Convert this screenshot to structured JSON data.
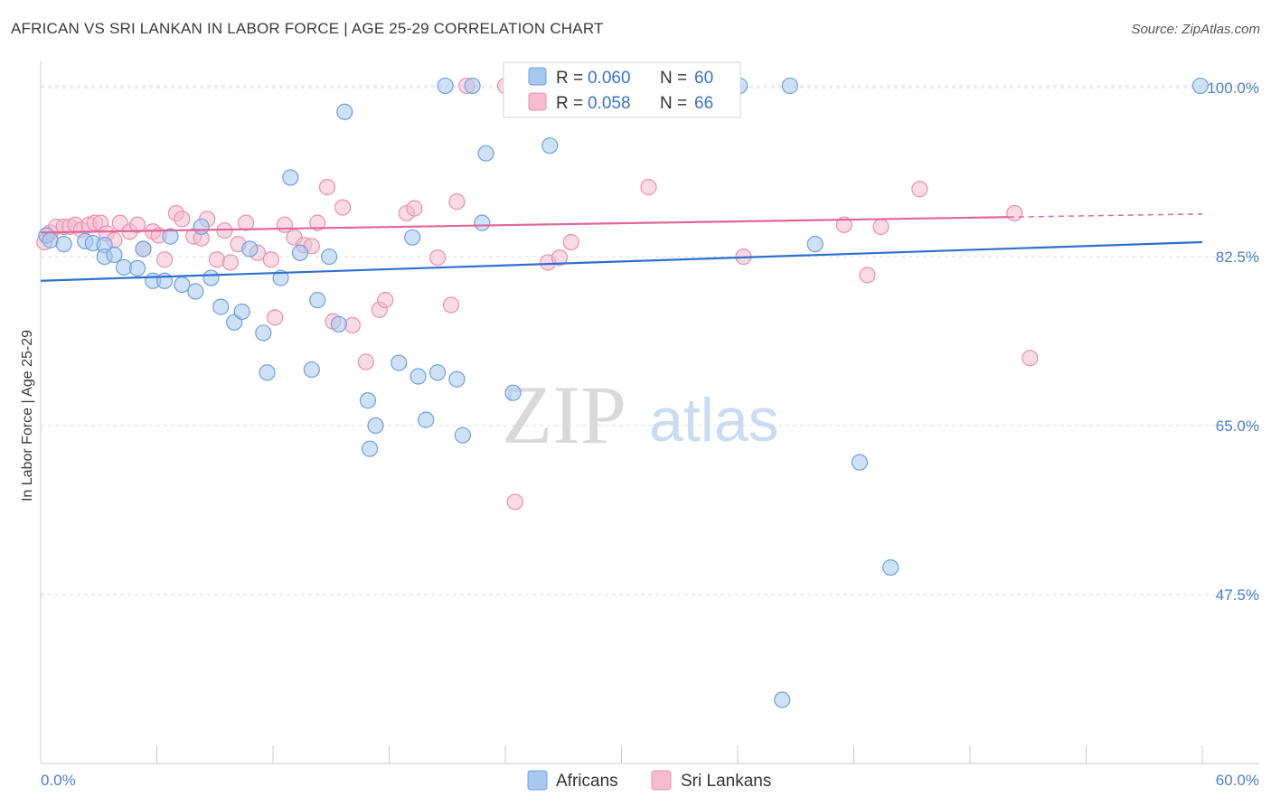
{
  "header": {
    "title": "AFRICAN VS SRI LANKAN IN LABOR FORCE | AGE 25-29 CORRELATION CHART",
    "source": "Source: ZipAtlas.com"
  },
  "watermark": {
    "zip": "ZIP",
    "atlas": "atlas"
  },
  "colors": {
    "blue_fill": "#a8c8f0",
    "blue_stroke": "#6fa0e0",
    "blue_line": "#2e6fcf",
    "pink_fill": "#f5bcd0",
    "pink_stroke": "#ec8fb0",
    "pink_line": "#e0679a",
    "grid": "#dddddd",
    "tick_text": "#4a7fd0"
  },
  "legend": {
    "rows": [
      {
        "r_label": "R = ",
        "r_value": "0.060",
        "n_label": "N = ",
        "n_value": "60",
        "color": "blue"
      },
      {
        "r_label": "R = ",
        "r_value": "0.058",
        "n_label": "N = ",
        "n_value": "66",
        "color": "pink"
      }
    ]
  },
  "chart_data": {
    "type": "scatter",
    "title": "AFRICAN VS SRI LANKAN IN LABOR FORCE | AGE 25-29 CORRELATION CHART",
    "xlabel": "",
    "ylabel": "In Labor Force | Age 25-29",
    "xlim": [
      0,
      60
    ],
    "ylim": [
      30,
      103
    ],
    "x_tick_labels": [
      "0.0%",
      "60.0%"
    ],
    "y_ticks": [
      47.5,
      65.0,
      82.5,
      100.0
    ],
    "y_tick_labels": [
      "47.5%",
      "65.0%",
      "82.5%",
      "100.0%"
    ],
    "grid": true,
    "legend_position": "top-center",
    "series": [
      {
        "name": "Africans",
        "color": "blue",
        "trend": {
          "x0": 0,
          "y0": 80.0,
          "x1": 60,
          "y1": 84.0
        },
        "points": [
          [
            0.3,
            84.7
          ],
          [
            0.5,
            84.2
          ],
          [
            1.2,
            83.8
          ],
          [
            2.3,
            84.1
          ],
          [
            2.7,
            83.9
          ],
          [
            3.3,
            83.7
          ],
          [
            3.3,
            82.5
          ],
          [
            3.8,
            82.7
          ],
          [
            4.3,
            81.4
          ],
          [
            5.0,
            81.3
          ],
          [
            5.3,
            83.3
          ],
          [
            5.8,
            80.0
          ],
          [
            6.4,
            80.0
          ],
          [
            6.7,
            84.6
          ],
          [
            7.3,
            79.6
          ],
          [
            8.0,
            78.9
          ],
          [
            8.3,
            85.6
          ],
          [
            8.8,
            80.3
          ],
          [
            9.3,
            77.3
          ],
          [
            10.0,
            75.7
          ],
          [
            10.4,
            76.8
          ],
          [
            10.8,
            83.3
          ],
          [
            11.5,
            74.6
          ],
          [
            11.7,
            70.5
          ],
          [
            12.4,
            80.3
          ],
          [
            12.9,
            90.7
          ],
          [
            13.4,
            82.9
          ],
          [
            14.0,
            70.8
          ],
          [
            14.3,
            78.0
          ],
          [
            14.9,
            82.5
          ],
          [
            15.4,
            75.5
          ],
          [
            15.7,
            97.5
          ],
          [
            16.9,
            67.6
          ],
          [
            17.0,
            62.6
          ],
          [
            17.3,
            65.0
          ],
          [
            18.5,
            71.5
          ],
          [
            19.2,
            84.5
          ],
          [
            19.5,
            70.1
          ],
          [
            19.9,
            65.6
          ],
          [
            20.5,
            70.5
          ],
          [
            20.9,
            100.2
          ],
          [
            21.5,
            69.8
          ],
          [
            21.8,
            64.0
          ],
          [
            22.3,
            100.2
          ],
          [
            22.8,
            86.0
          ],
          [
            23.0,
            93.2
          ],
          [
            24.4,
            68.4
          ],
          [
            26.3,
            94.0
          ],
          [
            28.0,
            100.2
          ],
          [
            30.2,
            100.2
          ],
          [
            32.2,
            100.2
          ],
          [
            33.8,
            100.2
          ],
          [
            34.7,
            100.2
          ],
          [
            36.1,
            100.2
          ],
          [
            38.3,
            36.6
          ],
          [
            38.7,
            100.2
          ],
          [
            40.0,
            83.8
          ],
          [
            42.3,
            61.2
          ],
          [
            43.9,
            50.3
          ],
          [
            59.9,
            100.2
          ]
        ]
      },
      {
        "name": "Sri Lankans",
        "color": "pink",
        "trend": {
          "x0": 0,
          "y0": 85.0,
          "x1": 50,
          "y1": 86.6
        },
        "points": [
          [
            0.2,
            84.0
          ],
          [
            0.5,
            85.0
          ],
          [
            0.8,
            85.6
          ],
          [
            1.2,
            85.6
          ],
          [
            1.5,
            85.6
          ],
          [
            1.8,
            85.8
          ],
          [
            2.1,
            85.3
          ],
          [
            2.5,
            85.8
          ],
          [
            2.8,
            86.0
          ],
          [
            3.1,
            86.0
          ],
          [
            3.4,
            84.9
          ],
          [
            3.8,
            84.2
          ],
          [
            4.1,
            86.0
          ],
          [
            4.6,
            85.1
          ],
          [
            5.0,
            85.8
          ],
          [
            5.3,
            83.3
          ],
          [
            5.8,
            85.1
          ],
          [
            6.1,
            84.7
          ],
          [
            6.4,
            82.2
          ],
          [
            7.0,
            87.0
          ],
          [
            7.3,
            86.4
          ],
          [
            7.9,
            84.6
          ],
          [
            8.3,
            84.4
          ],
          [
            8.6,
            86.4
          ],
          [
            9.1,
            82.2
          ],
          [
            9.5,
            85.2
          ],
          [
            9.8,
            81.9
          ],
          [
            10.2,
            83.8
          ],
          [
            10.6,
            86.0
          ],
          [
            11.2,
            82.9
          ],
          [
            11.9,
            82.2
          ],
          [
            12.1,
            76.2
          ],
          [
            12.6,
            85.8
          ],
          [
            13.1,
            84.5
          ],
          [
            13.6,
            83.7
          ],
          [
            14.0,
            83.6
          ],
          [
            14.3,
            86.0
          ],
          [
            14.8,
            89.7
          ],
          [
            15.1,
            75.8
          ],
          [
            15.6,
            87.6
          ],
          [
            16.1,
            75.4
          ],
          [
            16.8,
            71.6
          ],
          [
            17.5,
            77.0
          ],
          [
            17.8,
            78.0
          ],
          [
            18.9,
            87.0
          ],
          [
            19.3,
            87.5
          ],
          [
            20.5,
            82.4
          ],
          [
            21.2,
            77.5
          ],
          [
            21.5,
            88.2
          ],
          [
            22.0,
            100.2
          ],
          [
            24.0,
            100.2
          ],
          [
            24.5,
            57.1
          ],
          [
            26.2,
            81.9
          ],
          [
            26.8,
            82.4
          ],
          [
            27.4,
            84.0
          ],
          [
            29.5,
            98.1
          ],
          [
            31.4,
            89.7
          ],
          [
            33.0,
            100.2
          ],
          [
            33.6,
            100.2
          ],
          [
            36.3,
            82.5
          ],
          [
            41.5,
            85.8
          ],
          [
            42.7,
            80.6
          ],
          [
            43.4,
            85.6
          ],
          [
            45.4,
            89.5
          ],
          [
            50.3,
            87.0
          ],
          [
            51.1,
            72.0
          ]
        ]
      }
    ]
  }
}
